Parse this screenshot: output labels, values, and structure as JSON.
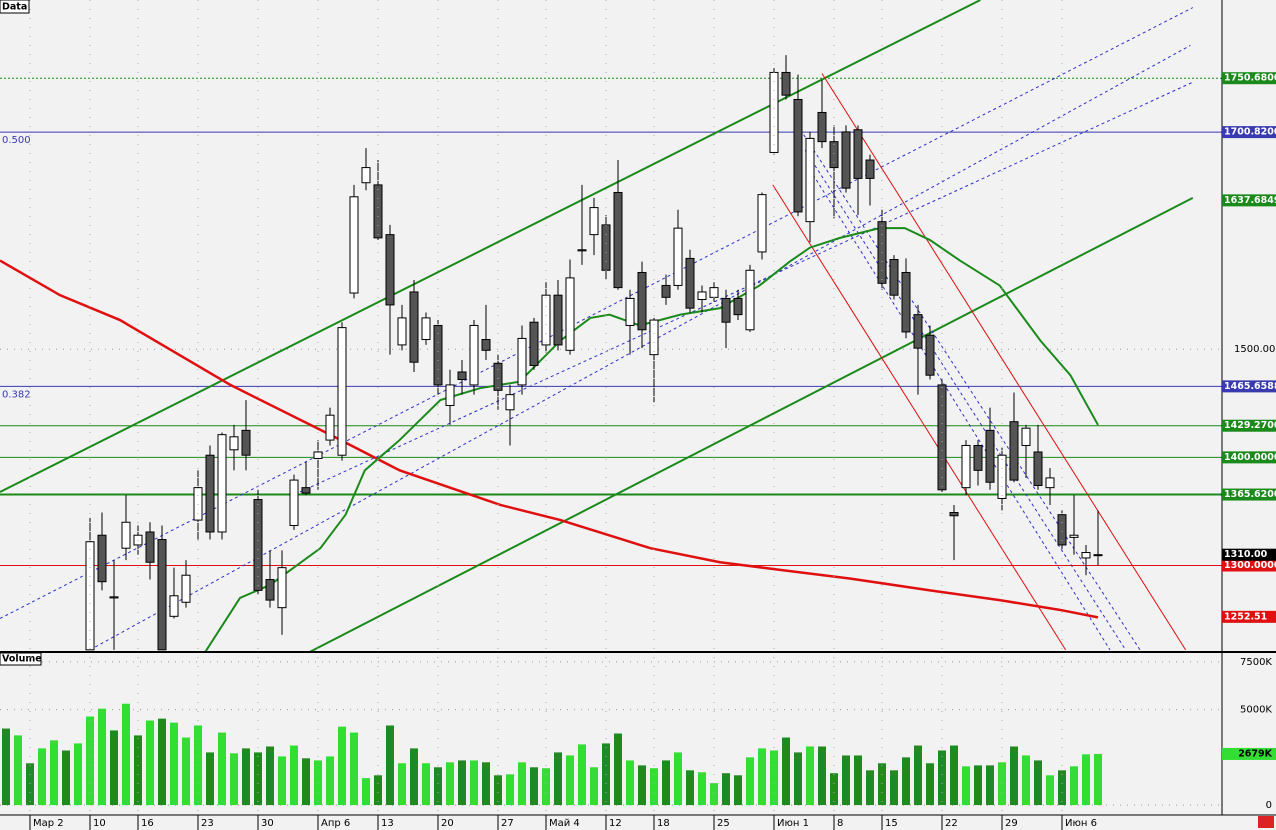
{
  "chart_data": [
    {
      "type": "candlestick",
      "panel_label": "Data",
      "ylim": [
        1220,
        1823
      ],
      "yticks": [
        {
          "value": 1500,
          "label": "1500.00"
        }
      ],
      "up_color": "#ffffff",
      "down_color": "#555555",
      "open": [
        1222,
        1328,
        1270,
        1316,
        1319,
        1331,
        1324,
        1253,
        1266,
        1342,
        1402,
        1331,
        1407,
        1425,
        1361,
        1287,
        1261,
        1337,
        1372,
        1399,
        1416,
        1402,
        1552,
        1654,
        1652,
        1606,
        1504,
        1553,
        1509,
        1522,
        1448,
        1479,
        1467,
        1509,
        1487,
        1444,
        1467,
        1525,
        1504,
        1550,
        1499,
        1591,
        1606,
        1615,
        1645,
        1522,
        1571,
        1495,
        1559,
        1559,
        1584,
        1546,
        1548,
        1547,
        1547,
        1518,
        1590,
        1682,
        1756,
        1731,
        1618,
        1719,
        1692,
        1701,
        1703,
        1675,
        1618,
        1583,
        1571,
        1532,
        1513,
        1467,
        1349,
        1372,
        1411,
        1425,
        1362,
        1433,
        1411,
        1405,
        1372,
        1347,
        1326,
        1307,
        1310
      ],
      "high": [
        1344,
        1349,
        1305,
        1365,
        1337,
        1340,
        1337,
        1298,
        1305,
        1388,
        1411,
        1423,
        1430,
        1453,
        1370,
        1314,
        1314,
        1384,
        1396,
        1416,
        1446,
        1525,
        1652,
        1686,
        1675,
        1615,
        1541,
        1564,
        1534,
        1527,
        1481,
        1490,
        1527,
        1541,
        1495,
        1467,
        1522,
        1529,
        1562,
        1564,
        1583,
        1652,
        1640,
        1624,
        1675,
        1555,
        1581,
        1529,
        1569,
        1629,
        1592,
        1559,
        1562,
        1555,
        1555,
        1578,
        1645,
        1760,
        1772,
        1754,
        1701,
        1749,
        1707,
        1707,
        1707,
        1680,
        1629,
        1587,
        1584,
        1541,
        1522,
        1472,
        1356,
        1416,
        1416,
        1446,
        1409,
        1460,
        1430,
        1430,
        1390,
        1351,
        1365,
        1319,
        1351
      ],
      "low": [
        1222,
        1277,
        1222,
        1305,
        1310,
        1287,
        1222,
        1251,
        1261,
        1324,
        1324,
        1324,
        1388,
        1388,
        1273,
        1261,
        1236,
        1333,
        1365,
        1370,
        1411,
        1397,
        1547,
        1647,
        1601,
        1495,
        1499,
        1479,
        1504,
        1458,
        1430,
        1458,
        1458,
        1490,
        1444,
        1411,
        1458,
        1481,
        1497,
        1499,
        1495,
        1578,
        1587,
        1564,
        1555,
        1495,
        1501,
        1451,
        1541,
        1555,
        1534,
        1534,
        1544,
        1501,
        1527,
        1516,
        1583,
        1680,
        1731,
        1623,
        1599,
        1686,
        1621,
        1645,
        1624,
        1633,
        1555,
        1546,
        1510,
        1458,
        1472,
        1368,
        1305,
        1365,
        1374,
        1370,
        1351,
        1377,
        1381,
        1370,
        1356,
        1314,
        1310,
        1291,
        1300
      ],
      "close": [
        1322,
        1285,
        1271,
        1340,
        1328,
        1303,
        1222,
        1272,
        1291,
        1372,
        1331,
        1421,
        1419,
        1402,
        1277,
        1268,
        1298,
        1379,
        1367,
        1405,
        1439,
        1520,
        1641,
        1668,
        1603,
        1541,
        1529,
        1488,
        1529,
        1467,
        1467,
        1472,
        1522,
        1499,
        1462,
        1458,
        1510,
        1485,
        1550,
        1504,
        1566,
        1592,
        1631,
        1573,
        1557,
        1547,
        1518,
        1527,
        1548,
        1612,
        1538,
        1553,
        1557,
        1525,
        1532,
        1573,
        1643,
        1756,
        1735,
        1627,
        1695,
        1692,
        1668,
        1649,
        1658,
        1658,
        1561,
        1550,
        1516,
        1501,
        1476,
        1370,
        1346,
        1411,
        1388,
        1377,
        1402,
        1379,
        1427,
        1374,
        1381,
        1319,
        1328,
        1312,
        1310
      ],
      "levels": [
        {
          "value": 1750.68,
          "label": "1750.6800",
          "color": "#1a8a1a",
          "style": "dotted"
        },
        {
          "value": 1700.82,
          "label": "1700.8200",
          "color": "#3a3ab0",
          "note": "0.500"
        },
        {
          "value": 1465.6588,
          "label": "1465.6588",
          "color": "#3a3ab0",
          "note": "0.382"
        },
        {
          "value": 1429.27,
          "label": "1429.2700",
          "color": "#1a8a1a"
        },
        {
          "value": 1400,
          "label": "1400.0000",
          "color": "#1a8a1a"
        },
        {
          "value": 1365.62,
          "label": "1365.6200",
          "color": "#1a8a1a",
          "width": 2
        },
        {
          "value": 1300,
          "label": "1300.0000",
          "color": "#e01010"
        }
      ],
      "tags": [
        {
          "value": 1637.6849,
          "label": "1637.6849",
          "color": "#1a8a1a"
        },
        {
          "value": 1310,
          "label": "1310.00",
          "color": "#000000"
        },
        {
          "value": 1252.51,
          "label": "1252.51",
          "color": "#e01010"
        }
      ],
      "lines": [
        {
          "color": "#1a8a1a",
          "width": 2,
          "x": [
            -7.5,
            74.2
          ],
          "y": [
            1368,
            1823
          ]
        },
        {
          "color": "#1a8a1a",
          "width": 2,
          "x": [
            18.3,
            91.9
          ],
          "y": [
            1220,
            1640
          ]
        },
        {
          "color": "#3030d0",
          "dashed": true,
          "x": [
            -7.5,
            91.9
          ],
          "y": [
            1251,
            1816
          ]
        },
        {
          "color": "#3030d0",
          "dashed": true,
          "x": [
            0,
            91.7
          ],
          "y": [
            1222,
            1781
          ]
        },
        {
          "color": "#3030d0",
          "dashed": true,
          "x": [
            17.5,
            91.9
          ],
          "y": [
            1368,
            1747
          ]
        },
        {
          "color": "#e01010",
          "x": [
            61,
            91.3
          ],
          "y": [
            1755,
            1222
          ]
        },
        {
          "color": "#e01010",
          "x": [
            56.9,
            81.3
          ],
          "y": [
            1652,
            1222
          ]
        },
        {
          "color": "#3030d0",
          "dashed": true,
          "x": [
            59.2,
            87.5
          ],
          "y": [
            1703,
            1222
          ]
        },
        {
          "color": "#3030d0",
          "dashed": true,
          "x": [
            59.6,
            86.3
          ],
          "y": [
            1684,
            1222
          ]
        },
        {
          "color": "#3030d0",
          "dashed": true,
          "x": [
            60,
            85
          ],
          "y": [
            1666,
            1222
          ]
        },
        {
          "color": "#e01010",
          "width": 2.5,
          "x": [
            -7.5,
            -2.5,
            2.5,
            11.7,
            20,
            25.8,
            34.2,
            39.2,
            46.7,
            52.5,
            57.5,
            63.3,
            70,
            75.8,
            80.8,
            84
          ],
          "y": [
            1582,
            1550,
            1527,
            1467,
            1421,
            1388,
            1356,
            1342,
            1316,
            1303,
            1296,
            1288,
            1277,
            1268,
            1259,
            1252
          ]
        },
        {
          "color": "#1a8a1a",
          "width": 2,
          "x": [
            9.6,
            12.5,
            15,
            19.2,
            21.3,
            22.9,
            25.8,
            29.2,
            32.5,
            35.8,
            39.2,
            41.7,
            43.3,
            45.8,
            49.2,
            52.5,
            55.8,
            58.3,
            60,
            62.5,
            65.8,
            67.9,
            70,
            72.5,
            75.8,
            79.2,
            81.7,
            84
          ],
          "y": [
            1220,
            1270,
            1282,
            1316,
            1347,
            1388,
            1416,
            1453,
            1464,
            1470,
            1508,
            1529,
            1532,
            1522,
            1532,
            1538,
            1559,
            1581,
            1594,
            1603,
            1612,
            1612,
            1601,
            1582,
            1559,
            1508,
            1476,
            1430
          ]
        }
      ]
    },
    {
      "type": "bar",
      "panel_label": "Volume",
      "ylim": [
        -520,
        8020
      ],
      "yticks": [
        {
          "value": 7500,
          "label": "7500K"
        },
        {
          "value": 5000,
          "label": "5000K"
        },
        0
      ],
      "values": [
        4010,
        3650,
        2190,
        2970,
        3390,
        2860,
        3230,
        4640,
        5050,
        3910,
        5310,
        3650,
        4430,
        4530,
        4320,
        3540,
        4170,
        2760,
        3800,
        2710,
        2970,
        2760,
        3070,
        2550,
        3120,
        2450,
        2340,
        2550,
        4110,
        3800,
        1410,
        1560,
        4170,
        2190,
        2970,
        2190,
        1980,
        2240,
        2340,
        2340,
        2240,
        1560,
        1610,
        2240,
        1980,
        1930,
        2760,
        2600,
        3180,
        1980,
        3230,
        3750,
        2340,
        2080,
        1930,
        2340,
        2760,
        1820,
        1720,
        1150,
        1670,
        1560,
        2500,
        2970,
        2860,
        3540,
        2760,
        3070,
        3070,
        1670,
        2600,
        2600,
        1820,
        2190,
        1820,
        2500,
        3120,
        2190,
        2860,
        3120,
        2030,
        2080,
        2080,
        2240,
        3070,
        2600,
        2340,
        1560,
        1820,
        2030,
        2660,
        2679
      ],
      "colors": [
        "#1f8a1f",
        "#33dd33",
        "#1f8a1f",
        "#33dd33",
        "#33dd33",
        "#1f8a1f",
        "#33dd33",
        "#33dd33",
        "#33dd33",
        "#1f8a1f",
        "#33dd33",
        "#1f8a1f",
        "#33dd33",
        "#1f8a1f",
        "#33dd33",
        "#33dd33",
        "#33dd33",
        "#1f8a1f",
        "#33dd33",
        "#33dd33",
        "#1f8a1f",
        "#1f8a1f",
        "#1f8a1f",
        "#33dd33",
        "#33dd33",
        "#1f8a1f",
        "#33dd33",
        "#33dd33",
        "#33dd33",
        "#33dd33",
        "#33dd33",
        "#1f8a1f",
        "#1f8a1f",
        "#33dd33",
        "#1f8a1f",
        "#33dd33",
        "#1f8a1f",
        "#33dd33",
        "#1f8a1f",
        "#33dd33",
        "#1f8a1f",
        "#1f8a1f",
        "#33dd33",
        "#33dd33",
        "#1f8a1f",
        "#33dd33",
        "#1f8a1f",
        "#33dd33",
        "#33dd33",
        "#33dd33",
        "#1f8a1f",
        "#1f8a1f",
        "#33dd33",
        "#1f8a1f",
        "#33dd33",
        "#1f8a1f",
        "#33dd33",
        "#1f8a1f",
        "#33dd33",
        "#33dd33",
        "#1f8a1f",
        "#1f8a1f",
        "#33dd33",
        "#33dd33",
        "#33dd33",
        "#1f8a1f",
        "#1f8a1f",
        "#33dd33",
        "#1f8a1f",
        "#1f8a1f",
        "#1f8a1f",
        "#1f8a1f",
        "#1f8a1f",
        "#1f8a1f",
        "#1f8a1f",
        "#1f8a1f",
        "#1f8a1f",
        "#1f8a1f",
        "#1f8a1f",
        "#1f8a1f",
        "#33dd33",
        "#1f8a1f",
        "#1f8a1f",
        "#33dd33",
        "#1f8a1f",
        "#33dd33",
        "#1f8a1f",
        "#33dd33",
        "#1f8a1f",
        "#33dd33",
        "#33dd33",
        "#33dd33"
      ],
      "tags": [
        {
          "value": 2679,
          "label": "2679K",
          "color": "#33dd33"
        }
      ],
      "xlabels": [
        {
          "index": -5,
          "label": "Мар 2"
        },
        {
          "index": 0,
          "label": "10"
        },
        {
          "index": 4,
          "label": "16"
        },
        {
          "index": 9,
          "label": "23"
        },
        {
          "index": 14,
          "label": "30"
        },
        {
          "index": 19,
          "label": "Апр 6"
        },
        {
          "index": 24,
          "label": "13"
        },
        {
          "index": 29,
          "label": "20"
        },
        {
          "index": 34,
          "label": "27"
        },
        {
          "index": 38,
          "label": "Май 4"
        },
        {
          "index": 43,
          "label": "12"
        },
        {
          "index": 47,
          "label": "18"
        },
        {
          "index": 52,
          "label": "25"
        },
        {
          "index": 57,
          "label": "Июн 1"
        },
        {
          "index": 62,
          "label": "8"
        },
        {
          "index": 66,
          "label": "15"
        },
        {
          "index": 71,
          "label": "22"
        },
        {
          "index": 76,
          "label": "29"
        },
        {
          "index": 81,
          "label": "Июн 6"
        }
      ]
    }
  ]
}
